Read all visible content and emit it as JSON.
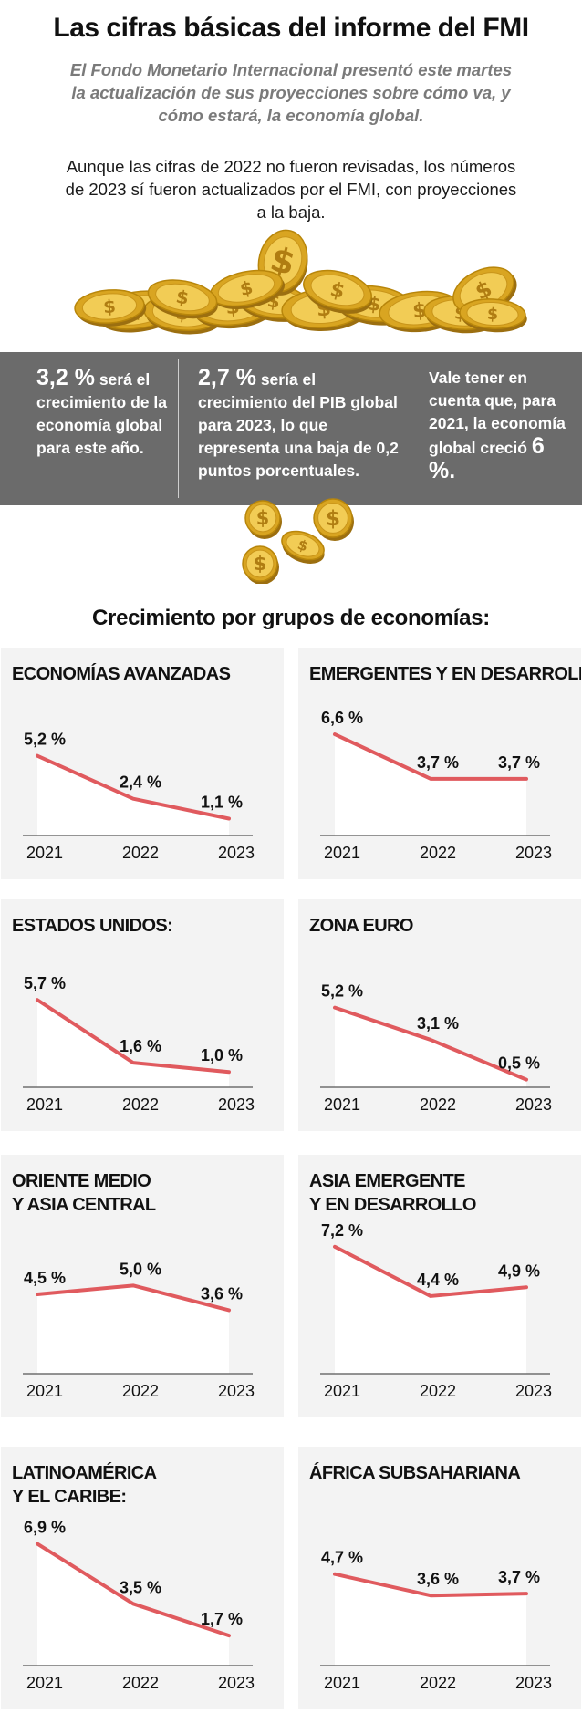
{
  "header": {
    "title": "Las cifras básicas del informe del FMI",
    "subtitle": "El Fondo Monetario Internacional presentó este martes la actualización de sus proyecciones sobre cómo va, y cómo estará, la economía global.",
    "intro": "Aunque las cifras de 2022 no fueron revisadas, los números de 2023 sí fueron actualizados por el FMI, con proyecciones a la baja."
  },
  "facts": [
    {
      "big": "3,2 %",
      "text": "será el crecimiento de la economía global para este año."
    },
    {
      "big": "2,7 %",
      "text": "sería el crecimiento del PIB global para 2023, lo que representa una baja de 0,2 puntos porcentuales."
    },
    {
      "text": "Vale tener en cuenta que, para 2021, la economía global creció",
      "big": "6 %."
    }
  ],
  "section_title": "Crecimiento por grupos de economías:",
  "colors": {
    "line": "#e05a5e",
    "panel_bg": "#f3f3f3",
    "area": "#ffffff",
    "band": "#6b6b6b",
    "coin": "#d9a521"
  },
  "icons": [
    "dollar-coin-icon"
  ],
  "chart_data": [
    {
      "type": "line",
      "title": "ECONOMÍAS AVANZADAS",
      "x": [
        "2021",
        "2022",
        "2023"
      ],
      "values": [
        5.2,
        2.4,
        1.1
      ],
      "labels": [
        "5,2 %",
        "2,4 %",
        "1,1 %"
      ]
    },
    {
      "type": "line",
      "title": "EMERGENTES Y EN DESARROLLO",
      "x": [
        "2021",
        "2022",
        "2023"
      ],
      "values": [
        6.6,
        3.7,
        3.7
      ],
      "labels": [
        "6,6 %",
        "3,7 %",
        "3,7 %"
      ]
    },
    {
      "type": "line",
      "title": "ESTADOS UNIDOS:",
      "x": [
        "2021",
        "2022",
        "2023"
      ],
      "values": [
        5.7,
        1.6,
        1.0
      ],
      "labels": [
        "5,7 %",
        "1,6 %",
        "1,0 %"
      ]
    },
    {
      "type": "line",
      "title": "ZONA EURO",
      "x": [
        "2021",
        "2022",
        "2023"
      ],
      "values": [
        5.2,
        3.1,
        0.5
      ],
      "labels": [
        "5,2 %",
        "3,1 %",
        "0,5 %"
      ]
    },
    {
      "type": "line",
      "title": "ORIENTE MEDIO\nY ASIA CENTRAL",
      "x": [
        "2021",
        "2022",
        "2023"
      ],
      "values": [
        4.5,
        5.0,
        3.6
      ],
      "labels": [
        "4,5 %",
        "5,0 %",
        "3,6 %"
      ]
    },
    {
      "type": "line",
      "title": "ASIA EMERGENTE\nY EN DESARROLLO",
      "x": [
        "2021",
        "2022",
        "2023"
      ],
      "values": [
        7.2,
        4.4,
        4.9
      ],
      "labels": [
        "7,2 %",
        "4,4 %",
        "4,9 %"
      ]
    },
    {
      "type": "line",
      "title": "LATINOAMÉRICA\nY EL CARIBE:",
      "x": [
        "2021",
        "2022",
        "2023"
      ],
      "values": [
        6.9,
        3.5,
        1.7
      ],
      "labels": [
        "6,9 %",
        "3,5 %",
        "1,7 %"
      ]
    },
    {
      "type": "line",
      "title": "ÁFRICA SUBSAHARIANA",
      "x": [
        "2021",
        "2022",
        "2023"
      ],
      "values": [
        4.7,
        3.6,
        3.7
      ],
      "labels": [
        "4,7 %",
        "3,6 %",
        "3,7 %"
      ]
    }
  ]
}
